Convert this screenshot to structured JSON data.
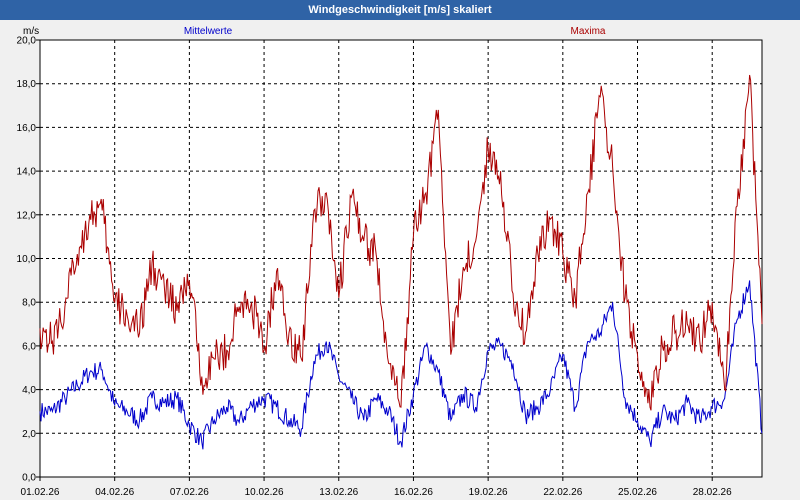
{
  "window": {
    "title": "Windgeschwindigkeit [m/s] skaliert"
  },
  "chart_data": {
    "type": "line",
    "title": "Windgeschwindigkeit [m/s] skaliert",
    "ylabel": "m/s",
    "xlabel": "",
    "ylim": [
      0,
      20
    ],
    "xlim": [
      0,
      29
    ],
    "grid": true,
    "y_ticks": [
      "0,0",
      "2,0",
      "4,0",
      "6,0",
      "8,0",
      "10,0",
      "12,0",
      "14,0",
      "16,0",
      "18,0",
      "20,0"
    ],
    "x_tick_positions": [
      0,
      3,
      6,
      9,
      12,
      15,
      18,
      21,
      24,
      27
    ],
    "x_tick_labels": [
      "01.02.26",
      "04.02.26",
      "07.02.26",
      "10.02.26",
      "13.02.26",
      "16.02.26",
      "19.02.26",
      "22.02.26",
      "25.02.26",
      "28.02.26"
    ],
    "series": [
      {
        "name": "Mittelwerte",
        "color": "#0000cc",
        "x": [
          0,
          0.5,
          1,
          1.5,
          2,
          2.5,
          3,
          3.5,
          4,
          4.5,
          5,
          5.5,
          6,
          6.5,
          7,
          7.5,
          8,
          8.5,
          9,
          9.5,
          10,
          10.5,
          11,
          11.5,
          12,
          12.5,
          13,
          13.5,
          14,
          14.5,
          15,
          15.5,
          16,
          16.5,
          17,
          17.5,
          18,
          18.5,
          19,
          19.5,
          20,
          20.5,
          21,
          21.5,
          22,
          22.5,
          23,
          23.5,
          24,
          24.5,
          25,
          25.5,
          26,
          26.5,
          27,
          27.5,
          28,
          28.5,
          29
        ],
        "values": [
          3.0,
          3.0,
          3.6,
          4.2,
          4.8,
          4.9,
          3.3,
          3.0,
          2.6,
          3.6,
          3.4,
          3.6,
          2.4,
          1.6,
          2.6,
          3.2,
          2.5,
          3.3,
          3.6,
          3.2,
          2.6,
          2.2,
          5.3,
          6.2,
          4.6,
          3.6,
          2.6,
          3.6,
          3.0,
          1.6,
          3.8,
          6.0,
          4.8,
          2.6,
          3.8,
          3.2,
          5.8,
          6.0,
          5.2,
          2.8,
          3.2,
          4.0,
          5.6,
          3.2,
          6.2,
          6.6,
          8.0,
          3.6,
          2.6,
          1.6,
          3.0,
          2.6,
          3.4,
          2.6,
          3.2,
          3.6,
          7.2,
          9.0,
          2.0
        ]
      },
      {
        "name": "Maxima",
        "color": "#aa0000",
        "x": [
          0,
          0.5,
          1,
          1.5,
          2,
          2.5,
          3,
          3.5,
          4,
          4.5,
          5,
          5.5,
          6,
          6.5,
          7,
          7.5,
          8,
          8.5,
          9,
          9.5,
          10,
          10.5,
          11,
          11.5,
          12,
          12.5,
          13,
          13.5,
          14,
          14.5,
          15,
          15.5,
          16,
          16.5,
          17,
          17.5,
          18,
          18.5,
          19,
          19.5,
          20,
          20.5,
          21,
          21.5,
          22,
          22.5,
          23,
          23.5,
          24,
          24.5,
          25,
          25.5,
          26,
          26.5,
          27,
          27.5,
          28,
          28.5,
          29
        ],
        "values": [
          6.8,
          6.2,
          7.8,
          10.2,
          12.0,
          12.2,
          8.0,
          7.4,
          6.6,
          9.8,
          8.6,
          7.6,
          9.0,
          4.6,
          5.4,
          5.8,
          7.8,
          8.0,
          5.8,
          9.4,
          6.6,
          5.4,
          12.2,
          13.0,
          8.2,
          12.8,
          10.8,
          10.2,
          5.2,
          3.2,
          11.0,
          13.0,
          16.8,
          5.6,
          9.6,
          10.8,
          15.0,
          14.0,
          8.4,
          6.6,
          10.2,
          11.8,
          10.2,
          8.2,
          13.0,
          17.4,
          14.2,
          8.2,
          5.6,
          3.2,
          6.0,
          6.6,
          7.0,
          6.2,
          8.0,
          4.0,
          12.4,
          18.4,
          7.0
        ]
      }
    ]
  }
}
